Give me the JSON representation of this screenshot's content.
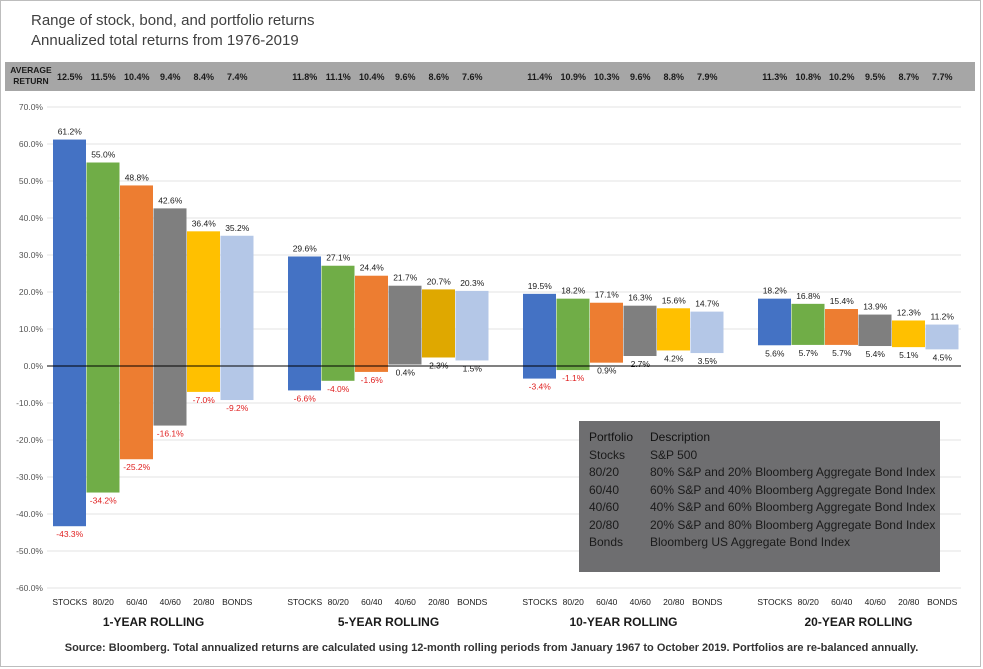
{
  "title": "Range of stock, bond, and portfolio returns",
  "subtitle": "Annualized total returns from 1976-2019",
  "avg_label_line1": "AVERAGE",
  "avg_label_line2": "RETURN",
  "source": "Source: Bloomberg.  Total annualized returns are calculated using 12-month rolling periods from January 1967 to October 2019.  Portfolios are re-balanced annually.",
  "legend": {
    "header": [
      "Portfolio",
      "Description"
    ],
    "rows": [
      [
        "Stocks",
        "S&P 500"
      ],
      [
        "80/20",
        "80% S&P and 20% Bloomberg Aggregate Bond Index"
      ],
      [
        "60/40",
        "60% S&P and 40% Bloomberg Aggregate Bond Index"
      ],
      [
        "40/60",
        "40% S&P and 60% Bloomberg Aggregate Bond Index"
      ],
      [
        "20/80",
        "20% S&P and 80% Bloomberg Aggregate Bond Index"
      ],
      [
        "Bonds",
        "Bloomberg US Aggregate Bond Index"
      ]
    ]
  },
  "chart_data": {
    "type": "bar",
    "subtype": "floating range bars",
    "ylim": [
      -60,
      70
    ],
    "yticks": [
      "70.0%",
      "60.0%",
      "50.0%",
      "40.0%",
      "30.0%",
      "20.0%",
      "10.0%",
      "0.0%",
      "-10.0%",
      "-20.0%",
      "-30.0%",
      "-40.0%",
      "-50.0%",
      "-60.0%"
    ],
    "grid": true,
    "categories": [
      "STOCKS",
      "80/20",
      "60/40",
      "40/60",
      "20/80",
      "BONDS"
    ],
    "colors": [
      "#4472c4",
      "#70ad47",
      "#ed7d31",
      "#7f7f7f",
      "#ffc000",
      "#b4c7e7"
    ],
    "groups": [
      {
        "label": "1-YEAR ROLLING",
        "averages": [
          "12.5%",
          "11.5%",
          "10.4%",
          "9.4%",
          "8.4%",
          "7.4%"
        ],
        "max": [
          61.2,
          55.0,
          48.8,
          42.6,
          36.4,
          35.2
        ],
        "min": [
          -43.3,
          -34.2,
          -25.2,
          -16.1,
          -7.0,
          -9.2
        ],
        "max_labels": [
          "61.2%",
          "55.0%",
          "48.8%",
          "42.6%",
          "36.4%",
          "35.2%"
        ],
        "min_labels": [
          "-43.3%",
          "-34.2%",
          "-25.2%",
          "-16.1%",
          "-7.0%",
          "-9.2%"
        ]
      },
      {
        "label": "5-YEAR ROLLING",
        "averages": [
          "11.8%",
          "11.1%",
          "10.4%",
          "9.6%",
          "8.6%",
          "7.6%"
        ],
        "max": [
          29.6,
          27.1,
          24.4,
          21.7,
          20.7,
          20.3
        ],
        "min": [
          -6.6,
          -4.0,
          -1.6,
          0.4,
          2.3,
          1.5
        ],
        "max_labels": [
          "29.6%",
          "27.1%",
          "24.4%",
          "21.7%",
          "20.7%",
          "20.3%"
        ],
        "min_labels": [
          "-6.6%",
          "-4.0%",
          "-1.6%",
          "0.4%",
          "2.3%",
          "1.5%"
        ]
      },
      {
        "label": "10-YEAR ROLLING",
        "averages": [
          "11.4%",
          "10.9%",
          "10.3%",
          "9.6%",
          "8.8%",
          "7.9%"
        ],
        "max": [
          19.5,
          18.2,
          17.1,
          16.3,
          15.6,
          14.7
        ],
        "min": [
          -3.4,
          -1.1,
          0.9,
          2.7,
          4.2,
          3.5
        ],
        "max_labels": [
          "19.5%",
          "18.2%",
          "17.1%",
          "16.3%",
          "15.6%",
          "14.7%"
        ],
        "min_labels": [
          "-3.4%",
          "-1.1%",
          "0.9%",
          "2.7%",
          "4.2%",
          "3.5%"
        ]
      },
      {
        "label": "20-YEAR ROLLING",
        "averages": [
          "11.3%",
          "10.8%",
          "10.2%",
          "9.5%",
          "8.7%",
          "7.7%"
        ],
        "max": [
          18.2,
          16.8,
          15.4,
          13.9,
          12.3,
          11.2
        ],
        "min": [
          5.6,
          5.7,
          5.7,
          5.4,
          5.1,
          4.5
        ],
        "max_labels": [
          "18.2%",
          "16.8%",
          "15.4%",
          "13.9%",
          "12.3%",
          "11.2%"
        ],
        "min_labels": [
          "5.6%",
          "5.7%",
          "5.7%",
          "5.4%",
          "5.1%",
          "4.5%"
        ]
      }
    ]
  }
}
